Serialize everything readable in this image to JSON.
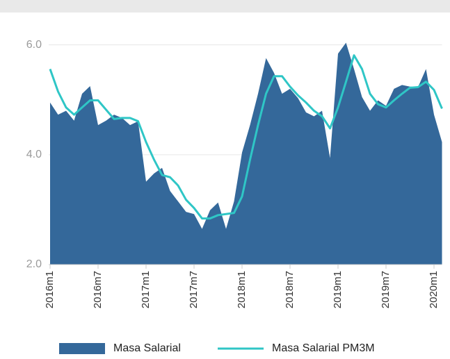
{
  "chart_data": {
    "type": "area-line",
    "categories": [
      "2016m1",
      null,
      null,
      null,
      null,
      null,
      "2016m7",
      null,
      null,
      null,
      null,
      null,
      "2017m1",
      null,
      null,
      null,
      null,
      null,
      "2017m7",
      null,
      null,
      null,
      null,
      null,
      "2018m1",
      null,
      null,
      null,
      null,
      null,
      "2018m7",
      null,
      null,
      null,
      null,
      null,
      "2019m1",
      null,
      null,
      null,
      null,
      null,
      "2019m7",
      null,
      null,
      null,
      null,
      null,
      "2020m1",
      null
    ],
    "series": [
      {
        "name": "Masa Salarial",
        "kind": "area",
        "color": "#34689a",
        "values": [
          4.95,
          4.73,
          4.8,
          4.62,
          5.11,
          5.25,
          4.54,
          4.62,
          4.73,
          4.67,
          4.54,
          4.61,
          3.51,
          3.66,
          3.76,
          3.34,
          3.15,
          2.96,
          2.92,
          2.65,
          2.99,
          3.13,
          2.65,
          3.15,
          4.04,
          4.54,
          5.11,
          5.76,
          5.49,
          5.11,
          5.2,
          5.03,
          4.77,
          4.7,
          4.8,
          3.94,
          5.84,
          6.04,
          5.56,
          5.05,
          4.8,
          4.99,
          4.89,
          5.2,
          5.27,
          5.24,
          5.23,
          5.56,
          4.73,
          4.23
        ]
      },
      {
        "name": "Masa Salarial PM3M",
        "kind": "line",
        "color": "#2fc6c6",
        "values": [
          5.56,
          5.15,
          4.86,
          4.73,
          4.86,
          4.99,
          4.99,
          4.82,
          4.65,
          4.67,
          4.67,
          4.61,
          4.23,
          3.91,
          3.63,
          3.59,
          3.44,
          3.18,
          3.03,
          2.84,
          2.84,
          2.9,
          2.92,
          2.94,
          3.24,
          3.91,
          4.54,
          5.11,
          5.43,
          5.43,
          5.24,
          5.08,
          4.95,
          4.8,
          4.7,
          4.48,
          4.86,
          5.33,
          5.81,
          5.56,
          5.11,
          4.92,
          4.86,
          4.99,
          5.11,
          5.22,
          5.23,
          5.33,
          5.18,
          4.84
        ]
      }
    ],
    "ylim": [
      2,
      6.4
    ],
    "yticks": [
      {
        "value": 2,
        "label": "2.0"
      },
      {
        "value": 4,
        "label": "4.0"
      },
      {
        "value": 6,
        "label": "6.0"
      }
    ],
    "grid": true,
    "legend": "bottom"
  }
}
